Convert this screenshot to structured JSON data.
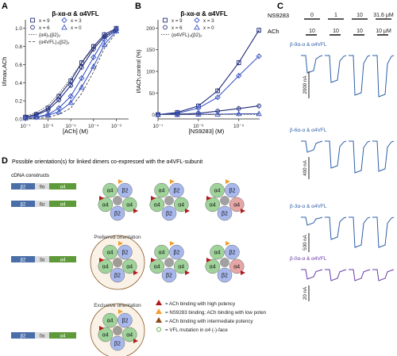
{
  "panel_a": {
    "letter": "A",
    "title": "β-xα-α & α4VFL",
    "ylabel": "I/Imax,ACh",
    "xlabel": "[ACh] (M)",
    "yticks": [
      "0.0",
      "0.2",
      "0.4",
      "0.6",
      "0.8",
      "1.0"
    ],
    "xticks": [
      "10⁻⁷",
      "10⁻⁶",
      "10⁻⁵",
      "10⁻⁴",
      "10⁻³"
    ],
    "legend": [
      "x = 9",
      "x = 3",
      "x = 6",
      "x = 0",
      "(α4)₃(β2)₂",
      "(α4VFL)₃(β2)₂"
    ]
  },
  "panel_b": {
    "letter": "B",
    "title": "β-xα-α & α4VFL",
    "ylabel": "I/IACh,control (%)",
    "xlabel": "[NS9283] (M)",
    "yticks": [
      "0",
      "50",
      "100",
      "150",
      "200"
    ],
    "xticks": [
      "10⁻⁷",
      "10⁻⁶",
      "10⁻⁵"
    ],
    "legend": [
      "x = 9",
      "x = 3",
      "x = 6",
      "x = 0",
      "(α4VFL)₃(β2)₂"
    ]
  },
  "panel_c": {
    "letter": "C",
    "ns_label": "NS9283",
    "ach_label": "ACh",
    "ns_values": [
      "0",
      "1",
      "10",
      "31.6 μM"
    ],
    "ach_values": [
      "10",
      "10",
      "10",
      "10 μM"
    ],
    "rows": [
      {
        "label": "β-9α-α & α4VFL",
        "scale": "2000 nA",
        "color": "#2e5fa8"
      },
      {
        "label": "β-6α-α & α4VFL",
        "scale": "400 nA",
        "color": "#2e5fa8"
      },
      {
        "label": "β-3α-α & α4VFL",
        "scale": "500 nA",
        "color": "#2e5fa8"
      },
      {
        "label": "β-0α-α & α4VFL",
        "scale": "20 nA",
        "color": "#6a3aa8"
      }
    ]
  },
  "panel_d": {
    "letter": "D",
    "title": "Possible orientation(s) for linked dimers co-expressed with the α4VFL-subunit",
    "cdna_header": "cDNA constructs",
    "constructs": [
      {
        "b": "β2",
        "link": "9α",
        "a": "α4"
      },
      {
        "b": "β2",
        "link": "6α",
        "a": "α4"
      },
      {
        "b": "β2",
        "link": "3α",
        "a": "α4"
      },
      {
        "b": "β2",
        "link": "0α",
        "a": "α4"
      }
    ],
    "preferred": "Preferred orientation",
    "exclusive": "Exclusive orientation",
    "subunit_labels": {
      "alpha": "α4",
      "beta": "β2"
    },
    "key": [
      "= ACh binding with high potency",
      "= NS9283 binding; ACh binding with low potency",
      "= ACh binding with intermediate potency",
      "= VFL mutation in α4 (-)-face"
    ]
  },
  "colors": {
    "series_dark": "#1f2b7a",
    "series_blue": "#3d57c4",
    "alpha_green": "#9fd39a",
    "beta_blue": "#a8b8ec",
    "alpha_red": "#e7a6a6",
    "arrow_red": "#b3191a",
    "arrow_orange": "#f0a030",
    "arrow_brown": "#8a4a1a",
    "construct_green": "#5e9a3a",
    "construct_blue": "#4a6ea8"
  },
  "chart_data": [
    {
      "type": "line",
      "panel": "A",
      "title": "β-xα-α & α4VFL",
      "xlabel": "[ACh] (M)",
      "ylabel": "I/Imax,ACh",
      "xscale": "log",
      "xlim": [
        1e-07,
        0.003
      ],
      "ylim": [
        0,
        1.05
      ],
      "series": [
        {
          "name": "x = 9",
          "x": [
            1e-07,
            3e-07,
            1e-06,
            3e-06,
            1e-05,
            3e-05,
            0.0001,
            0.0003,
            0.001
          ],
          "values": [
            0.02,
            0.05,
            0.12,
            0.25,
            0.42,
            0.62,
            0.8,
            0.93,
            1.0
          ]
        },
        {
          "name": "x = 3",
          "x": [
            1e-07,
            3e-07,
            1e-06,
            3e-06,
            1e-05,
            3e-05,
            0.0001,
            0.0003,
            0.001
          ],
          "values": [
            0.01,
            0.02,
            0.05,
            0.12,
            0.25,
            0.45,
            0.68,
            0.88,
            0.98
          ]
        },
        {
          "name": "x = 6",
          "x": [
            1e-07,
            3e-07,
            1e-06,
            3e-06,
            1e-05,
            3e-05,
            0.0001,
            0.0003,
            0.001
          ],
          "values": [
            0.02,
            0.04,
            0.1,
            0.21,
            0.37,
            0.57,
            0.77,
            0.91,
            0.99
          ]
        },
        {
          "name": "x = 0",
          "x": [
            1e-07,
            3e-07,
            1e-06,
            3e-06,
            1e-05,
            3e-05,
            0.0001,
            0.0003,
            0.001
          ],
          "values": [
            0.01,
            0.02,
            0.04,
            0.08,
            0.18,
            0.35,
            0.58,
            0.82,
            0.97
          ]
        },
        {
          "name": "(α4)₃(β2)₂",
          "x": [
            1e-07,
            3e-07,
            1e-06,
            3e-06,
            1e-05,
            3e-05,
            0.0001,
            0.0003,
            0.001
          ],
          "values": [
            0.03,
            0.07,
            0.15,
            0.28,
            0.45,
            0.62,
            0.78,
            0.9,
            0.97
          ]
        },
        {
          "name": "(α4VFL)₃(β2)₂",
          "x": [
            1e-07,
            3e-07,
            1e-06,
            3e-06,
            1e-05,
            3e-05,
            0.0001,
            0.0003,
            0.001
          ],
          "values": [
            0.0,
            0.01,
            0.02,
            0.05,
            0.12,
            0.28,
            0.52,
            0.78,
            0.95
          ]
        }
      ]
    },
    {
      "type": "line",
      "panel": "B",
      "title": "β-xα-α & α4VFL",
      "xlabel": "[NS9283] (M)",
      "ylabel": "I/IACh,control (%)",
      "xscale": "log",
      "xlim": [
        1e-07,
        3e-05
      ],
      "ylim": [
        -10,
        210
      ],
      "series": [
        {
          "name": "x = 9",
          "x": [
            1e-07,
            3e-07,
            1e-06,
            3e-06,
            1e-05,
            3.16e-05
          ],
          "values": [
            0,
            5,
            20,
            55,
            120,
            195
          ]
        },
        {
          "name": "x = 3",
          "x": [
            1e-07,
            3e-07,
            1e-06,
            3e-06,
            1e-05,
            3.16e-05
          ],
          "values": [
            0,
            3,
            15,
            40,
            90,
            135
          ]
        },
        {
          "name": "x = 6",
          "x": [
            1e-07,
            3e-07,
            1e-06,
            3e-06,
            1e-05,
            3.16e-05
          ],
          "values": [
            0,
            1,
            3,
            8,
            14,
            20
          ]
        },
        {
          "name": "x = 0",
          "x": [
            1e-07,
            3e-07,
            1e-06,
            3e-06,
            1e-05,
            3.16e-05
          ],
          "values": [
            0,
            0,
            1,
            1,
            2,
            2
          ]
        },
        {
          "name": "(α4VFL)₃(β2)₂",
          "x": [
            1e-07,
            3e-07,
            1e-06,
            3e-06,
            1e-05,
            3.16e-05
          ],
          "values": [
            0,
            0,
            0,
            0,
            1,
            1
          ]
        }
      ]
    }
  ]
}
